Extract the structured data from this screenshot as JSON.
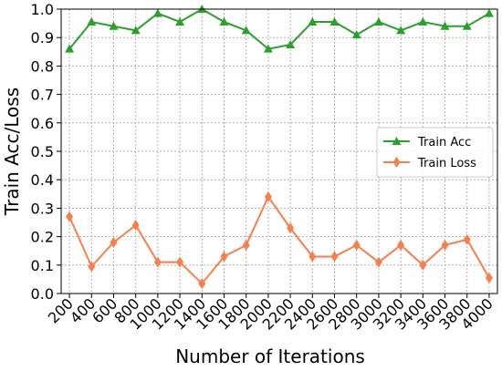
{
  "chart_data": {
    "type": "line",
    "title": "",
    "xlabel": "Number of Iterations",
    "ylabel": "Train Acc/Loss",
    "categories": [
      "200",
      "400",
      "600",
      "800",
      "1000",
      "1200",
      "1400",
      "1600",
      "1800",
      "2000",
      "2200",
      "2400",
      "2600",
      "2800",
      "3000",
      "3200",
      "3400",
      "3600",
      "3800",
      "4000"
    ],
    "yticks": [
      "0.0",
      "0.1",
      "0.2",
      "0.3",
      "0.4",
      "0.5",
      "0.6",
      "0.7",
      "0.8",
      "0.9",
      "1.0"
    ],
    "ylim": [
      0,
      1
    ],
    "grid": true,
    "legend_position": "center-right",
    "series": [
      {
        "name": "Train Acc",
        "color": "#2ca02c",
        "marker": "triangle-up",
        "values": [
          0.86,
          0.955,
          0.94,
          0.925,
          0.985,
          0.955,
          1.0,
          0.955,
          0.925,
          0.86,
          0.875,
          0.955,
          0.955,
          0.91,
          0.955,
          0.925,
          0.955,
          0.94,
          0.94,
          0.985
        ]
      },
      {
        "name": "Train Loss",
        "color": "#f5804f",
        "marker": "diamond",
        "values": [
          0.27,
          0.095,
          0.18,
          0.24,
          0.11,
          0.11,
          0.035,
          0.13,
          0.17,
          0.34,
          0.23,
          0.13,
          0.13,
          0.17,
          0.11,
          0.17,
          0.1,
          0.17,
          0.19,
          0.055
        ]
      }
    ]
  }
}
